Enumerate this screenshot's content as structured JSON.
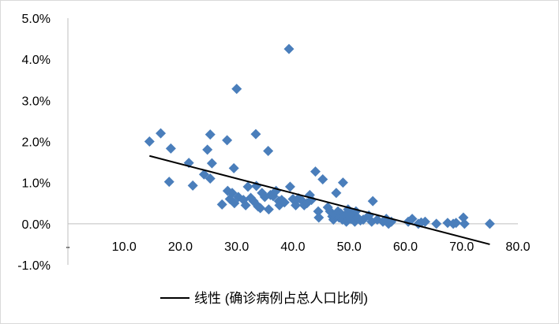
{
  "chart_data": {
    "type": "scatter",
    "title": "",
    "xlabel": "",
    "ylabel": "",
    "xlim": [
      0,
      80
    ],
    "ylim": [
      -1.0,
      5.0
    ],
    "x_ticks": [
      0,
      10,
      20,
      30,
      40,
      50,
      60,
      70,
      80
    ],
    "x_tick_labels": [
      "-",
      "10.0",
      "20.0",
      "30.0",
      "40.0",
      "50.0",
      "60.0",
      "70.0",
      "80.0"
    ],
    "y_ticks": [
      -1,
      0,
      1,
      2,
      3,
      4,
      5
    ],
    "y_tick_labels": [
      "-1.0%",
      "0.0%",
      "1.0%",
      "2.0%",
      "3.0%",
      "4.0%",
      "5.0%"
    ],
    "grid": false,
    "legend_position": "bottom",
    "marker": "diamond",
    "marker_color": "#4a7ebb",
    "trendline_color": "#000000",
    "series": [
      {
        "points": [
          [
            14.5,
            2.0
          ],
          [
            16.5,
            2.2
          ],
          [
            18.0,
            1.02
          ],
          [
            18.3,
            1.83
          ],
          [
            21.5,
            1.48
          ],
          [
            22.2,
            0.93
          ],
          [
            24.2,
            1.2
          ],
          [
            24.8,
            1.8
          ],
          [
            25.3,
            2.17
          ],
          [
            25.3,
            1.1
          ],
          [
            25.6,
            1.47
          ],
          [
            27.4,
            0.47
          ],
          [
            28.3,
            2.03
          ],
          [
            28.4,
            0.8
          ],
          [
            28.8,
            0.6
          ],
          [
            29.2,
            0.75
          ],
          [
            29.5,
            1.35
          ],
          [
            29.6,
            0.5
          ],
          [
            30.0,
            3.28
          ],
          [
            30.3,
            0.65
          ],
          [
            31.2,
            0.58
          ],
          [
            31.6,
            0.45
          ],
          [
            32.0,
            0.9
          ],
          [
            32.5,
            0.63
          ],
          [
            33.0,
            0.55
          ],
          [
            33.4,
            2.18
          ],
          [
            33.5,
            0.92
          ],
          [
            33.8,
            0.42
          ],
          [
            34.2,
            0.38
          ],
          [
            34.5,
            0.75
          ],
          [
            35.0,
            0.65
          ],
          [
            35.6,
            1.77
          ],
          [
            35.7,
            0.35
          ],
          [
            36.0,
            0.7
          ],
          [
            36.5,
            0.67
          ],
          [
            37.0,
            0.8
          ],
          [
            37.5,
            0.55
          ],
          [
            37.6,
            0.45
          ],
          [
            38.0,
            0.58
          ],
          [
            38.5,
            0.52
          ],
          [
            39.3,
            4.25
          ],
          [
            39.5,
            0.9
          ],
          [
            40.0,
            0.6
          ],
          [
            40.5,
            0.45
          ],
          [
            41.0,
            0.62
          ],
          [
            41.7,
            0.55
          ],
          [
            42.0,
            0.45
          ],
          [
            42.5,
            0.5
          ],
          [
            43.0,
            0.7
          ],
          [
            43.3,
            0.58
          ],
          [
            44.0,
            1.27
          ],
          [
            44.5,
            0.3
          ],
          [
            44.6,
            0.15
          ],
          [
            45.3,
            1.08
          ],
          [
            46.2,
            0.4
          ],
          [
            46.6,
            0.3
          ],
          [
            47.0,
            0.18
          ],
          [
            47.2,
            0.1
          ],
          [
            47.5,
            0.2
          ],
          [
            47.7,
            0.75
          ],
          [
            48.0,
            0.3
          ],
          [
            48.2,
            0.15
          ],
          [
            48.5,
            0.25
          ],
          [
            48.8,
            0.1
          ],
          [
            48.9,
            1.0
          ],
          [
            49.2,
            0.2
          ],
          [
            49.5,
            0.05
          ],
          [
            49.8,
            0.35
          ],
          [
            50.0,
            0.25
          ],
          [
            50.3,
            0.12
          ],
          [
            50.7,
            0.2
          ],
          [
            51.0,
            0.05
          ],
          [
            51.2,
            0.3
          ],
          [
            51.5,
            0.15
          ],
          [
            52.0,
            0.08
          ],
          [
            52.5,
            0.1
          ],
          [
            53.5,
            0.2
          ],
          [
            54.0,
            0.05
          ],
          [
            54.2,
            0.55
          ],
          [
            55.0,
            0.1
          ],
          [
            56.0,
            0.05
          ],
          [
            56.6,
            0.12
          ],
          [
            57.0,
            0.0
          ],
          [
            57.5,
            0.05
          ],
          [
            60.5,
            0.05
          ],
          [
            61.2,
            0.12
          ],
          [
            62.3,
            0.0
          ],
          [
            62.8,
            0.03
          ],
          [
            63.5,
            0.05
          ],
          [
            65.5,
            0.0
          ],
          [
            67.5,
            0.02
          ],
          [
            68.5,
            0.0
          ],
          [
            69.0,
            0.02
          ],
          [
            70.3,
            0.15
          ],
          [
            70.5,
            0.0
          ],
          [
            75.0,
            0.0
          ]
        ]
      }
    ],
    "trendline": {
      "type": "linear",
      "x_start": 14.5,
      "y_start": 1.65,
      "x_end": 75.0,
      "y_end": -0.5,
      "legend_label": "线性 (确诊病例占总人口比例)"
    }
  }
}
